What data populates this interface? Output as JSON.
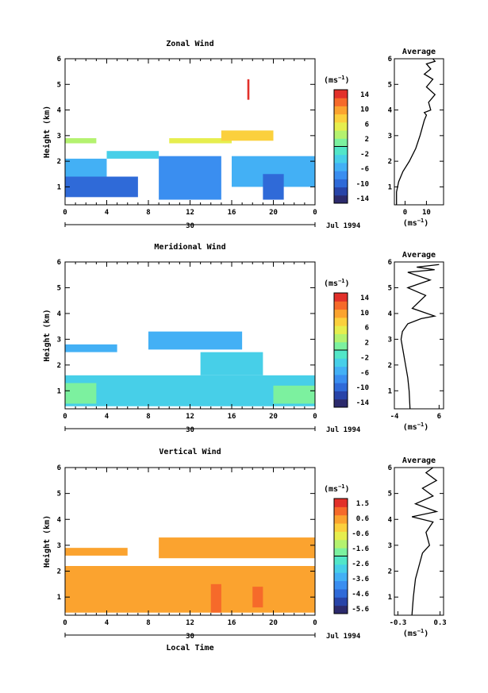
{
  "figure": {
    "date_label": "Jul 1994",
    "day_label": "30",
    "xlabel": "Local Time"
  },
  "colormap": [
    "#2c2a6c",
    "#2844a8",
    "#2f6ad8",
    "#3a8ef0",
    "#43b0f5",
    "#47cfe8",
    "#52e6c8",
    "#7cf19f",
    "#b4f26f",
    "#e6ee4e",
    "#fbd03d",
    "#fba32f",
    "#f66a2a",
    "#e2302a"
  ],
  "chart_data": [
    {
      "type": "heatmap",
      "title": "Zonal Wind",
      "ylabel": "Height (km)",
      "xlabel": "",
      "colorbar_label": "(ms",
      "colorbar_ticks": [
        "14",
        "10",
        "6",
        "2",
        "-2",
        "-6",
        "-10",
        "-14"
      ],
      "colorbar_range": [
        -16,
        16
      ],
      "x_ticks": [
        "0",
        "4",
        "8",
        "12",
        "16",
        "20",
        "0"
      ],
      "y_ticks": [
        "1",
        "2",
        "3",
        "4",
        "5",
        "6"
      ],
      "xlim": [
        0,
        24
      ],
      "ylim": [
        0.3,
        6
      ],
      "cells": [
        {
          "x": [
            0,
            3
          ],
          "y": [
            2.7,
            2.9
          ],
          "v": 3
        },
        {
          "x": [
            0,
            4
          ],
          "y": [
            1.4,
            2.1
          ],
          "v": -6
        },
        {
          "x": [
            0,
            7
          ],
          "y": [
            0.6,
            1.4
          ],
          "v": -11
        },
        {
          "x": [
            4,
            9
          ],
          "y": [
            2.1,
            2.4
          ],
          "v": -4
        },
        {
          "x": [
            9,
            15
          ],
          "y": [
            0.5,
            2.2
          ],
          "v": -7
        },
        {
          "x": [
            10,
            16
          ],
          "y": [
            2.7,
            2.9
          ],
          "v": 5
        },
        {
          "x": [
            15,
            20
          ],
          "y": [
            2.8,
            3.2
          ],
          "v": 9
        },
        {
          "x": [
            16,
            24
          ],
          "y": [
            1.0,
            2.2
          ],
          "v": -5
        },
        {
          "x": [
            19,
            21
          ],
          "y": [
            0.5,
            1.5
          ],
          "v": -10
        },
        {
          "x": [
            17.5,
            17.7
          ],
          "y": [
            4.4,
            5.2
          ],
          "v": 14
        }
      ],
      "profile": {
        "title": "Average",
        "xlabel": "(ms",
        "x_ticks": [
          "0",
          "10"
        ],
        "y_ticks": [
          "1",
          "2",
          "3",
          "4",
          "5",
          "6"
        ],
        "xlim": [
          -5,
          18
        ],
        "ylim": [
          0.3,
          6
        ],
        "x": [
          -4,
          -4,
          -3,
          -1,
          2,
          5,
          7,
          8,
          9,
          10,
          9,
          12,
          11,
          14,
          10,
          13,
          9,
          12,
          10,
          14,
          13
        ],
        "y": [
          0.3,
          0.8,
          1.2,
          1.6,
          2.0,
          2.5,
          3.0,
          3.3,
          3.6,
          3.8,
          3.9,
          4.0,
          4.3,
          4.6,
          4.9,
          5.2,
          5.4,
          5.6,
          5.8,
          5.9,
          6.0
        ]
      }
    },
    {
      "type": "heatmap",
      "title": "Meridional Wind",
      "ylabel": "Height (km)",
      "xlabel": "",
      "colorbar_label": "(ms",
      "colorbar_ticks": [
        "14",
        "10",
        "6",
        "2",
        "-2",
        "-6",
        "-10",
        "-14"
      ],
      "colorbar_range": [
        -16,
        16
      ],
      "x_ticks": [
        "0",
        "4",
        "8",
        "12",
        "16",
        "20",
        "0"
      ],
      "y_ticks": [
        "1",
        "2",
        "3",
        "4",
        "5",
        "6"
      ],
      "xlim": [
        0,
        24
      ],
      "ylim": [
        0.3,
        6
      ],
      "cells": [
        {
          "x": [
            0,
            24
          ],
          "y": [
            0.4,
            1.6
          ],
          "v": -4
        },
        {
          "x": [
            0,
            5
          ],
          "y": [
            2.5,
            2.8
          ],
          "v": -5
        },
        {
          "x": [
            8,
            17
          ],
          "y": [
            2.6,
            3.3
          ],
          "v": -6
        },
        {
          "x": [
            0,
            3
          ],
          "y": [
            0.5,
            1.3
          ],
          "v": 1
        },
        {
          "x": [
            13,
            19
          ],
          "y": [
            1.6,
            2.5
          ],
          "v": -4
        },
        {
          "x": [
            20,
            24
          ],
          "y": [
            0.5,
            1.2
          ],
          "v": 0
        }
      ],
      "profile": {
        "title": "Average",
        "xlabel": "(ms",
        "x_ticks": [
          "-4",
          "6"
        ],
        "y_ticks": [
          "1",
          "2",
          "3",
          "4",
          "5",
          "6"
        ],
        "xlim": [
          -4,
          7
        ],
        "ylim": [
          0.3,
          6
        ],
        "x": [
          -0.5,
          -0.7,
          -1,
          -1.5,
          -2,
          -2.5,
          -2.2,
          -1,
          2,
          5,
          0,
          3,
          -1,
          4,
          -1,
          5,
          1,
          6
        ],
        "y": [
          0.3,
          1.0,
          1.5,
          2.0,
          2.5,
          3.0,
          3.3,
          3.6,
          3.8,
          3.9,
          4.2,
          4.7,
          5.0,
          5.3,
          5.6,
          5.7,
          5.8,
          5.9
        ]
      }
    },
    {
      "type": "heatmap",
      "title": "Vertical Wind",
      "ylabel": "Height (km)",
      "xlabel": "Local Time",
      "colorbar_label": "(ms",
      "colorbar_ticks": [
        "1.5",
        "0.6",
        "-0.6",
        "-1.6",
        "-2.6",
        "-3.6",
        "-4.6",
        "-5.6"
      ],
      "colorbar_range": [
        -6,
        2
      ],
      "x_ticks": [
        "0",
        "4",
        "8",
        "12",
        "16",
        "20",
        "0"
      ],
      "y_ticks": [
        "1",
        "2",
        "3",
        "4",
        "5",
        "6"
      ],
      "xlim": [
        0,
        24
      ],
      "ylim": [
        0.3,
        6
      ],
      "cells": [
        {
          "x": [
            0,
            24
          ],
          "y": [
            0.4,
            2.2
          ],
          "v": 0.3
        },
        {
          "x": [
            0,
            6
          ],
          "y": [
            2.6,
            2.9
          ],
          "v": 0.3
        },
        {
          "x": [
            9,
            24
          ],
          "y": [
            2.5,
            3.3
          ],
          "v": 0.4
        },
        {
          "x": [
            14,
            15
          ],
          "y": [
            0.4,
            1.5
          ],
          "v": 1.2
        },
        {
          "x": [
            18,
            19
          ],
          "y": [
            0.6,
            1.4
          ],
          "v": 1.0
        }
      ],
      "profile": {
        "title": "Average",
        "xlabel": "(ms",
        "x_ticks": [
          "-0.3",
          "0.3"
        ],
        "y_ticks": [
          "1",
          "2",
          "3",
          "4",
          "5",
          "6"
        ],
        "xlim": [
          -0.35,
          0.35
        ],
        "ylim": [
          0.3,
          6
        ],
        "x": [
          -0.1,
          -0.08,
          -0.05,
          0,
          0.05,
          0.15,
          0.1,
          0.2,
          -0.1,
          0.25,
          -0.05,
          0.2,
          0.05,
          0.25,
          0.1,
          0.2
        ],
        "y": [
          0.3,
          1.0,
          1.7,
          2.2,
          2.7,
          3.0,
          3.5,
          3.9,
          4.1,
          4.3,
          4.6,
          4.9,
          5.2,
          5.5,
          5.8,
          6.0
        ]
      }
    }
  ]
}
